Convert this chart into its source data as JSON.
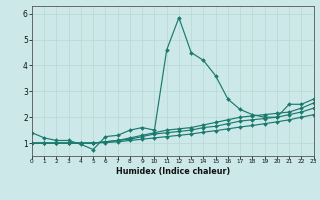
{
  "title": "",
  "xlabel": "Humidex (Indice chaleur)",
  "bg_color": "#cce8e8",
  "line_color": "#1a7a6e",
  "grid_color": "#b8d8d5",
  "xlim": [
    0,
    23
  ],
  "ylim": [
    0.5,
    6.3
  ],
  "yticks": [
    1,
    2,
    3,
    4,
    5,
    6
  ],
  "xticks": [
    0,
    1,
    2,
    3,
    4,
    5,
    6,
    7,
    8,
    9,
    10,
    11,
    12,
    13,
    14,
    15,
    16,
    17,
    18,
    19,
    20,
    21,
    22,
    23
  ],
  "series1": [
    1.4,
    1.2,
    1.1,
    1.1,
    0.95,
    0.75,
    1.25,
    1.3,
    1.5,
    1.6,
    1.5,
    4.6,
    5.85,
    4.5,
    4.2,
    3.6,
    2.7,
    2.3,
    2.1,
    2.0,
    2.0,
    2.5,
    2.5,
    2.7
  ],
  "series2": [
    1.0,
    1.0,
    1.0,
    1.0,
    1.0,
    1.0,
    1.05,
    1.1,
    1.2,
    1.3,
    1.4,
    1.5,
    1.55,
    1.6,
    1.7,
    1.8,
    1.9,
    2.0,
    2.05,
    2.1,
    2.15,
    2.2,
    2.35,
    2.55
  ],
  "series3": [
    1.0,
    1.0,
    1.0,
    1.0,
    1.0,
    1.0,
    1.05,
    1.1,
    1.15,
    1.25,
    1.35,
    1.4,
    1.45,
    1.5,
    1.6,
    1.65,
    1.75,
    1.85,
    1.9,
    1.95,
    2.0,
    2.1,
    2.2,
    2.35
  ],
  "series4": [
    1.0,
    1.0,
    1.0,
    1.0,
    1.0,
    1.0,
    1.02,
    1.05,
    1.1,
    1.15,
    1.2,
    1.25,
    1.3,
    1.35,
    1.42,
    1.48,
    1.55,
    1.62,
    1.68,
    1.75,
    1.82,
    1.9,
    2.0,
    2.1
  ]
}
